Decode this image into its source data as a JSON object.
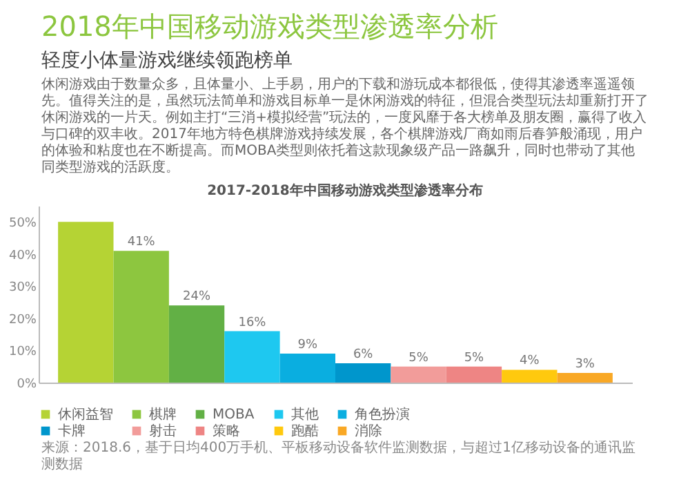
{
  "chart_data": {
    "type": "bar",
    "title": "2018年中国移动游戏类型渗透率分析",
    "subtitle": "轻度小体量游戏继续领跑榜单",
    "annotations": [
      "休闲游戏由于数量众多，且体量小、上手易，用户的下载和游玩成本都很低，使得其渗透率遥遥领先。值得关注的是，虽然玩法简单和游戏目标单一是休闲游戏的特征，但混合类型玩法却重新打开了休闲游戏的一片天。例如主打“三消+模拟经营”玩法的，一度风靡于各大榜单及朋友圈，赢得了收入与口碑的双丰收。2017年地方特色棋牌游戏持续发展，各个棋牌游戏厂商如雨后春笋般涌现，用户的体验和粘度也在不断提高。而MOBA类型则依托着这款现象级产品一路飙升，同时也带动了其他同类型游戏的活跃度。",
      "2017-2018年中国移动游戏类型渗透率分布",
      "来源：2018.6，基于日均400万手机、平板移动设备软件监测数据，与超过1亿移动设备的通讯监测数据"
    ],
    "categories": [
      null,
      null,
      null,
      null,
      null,
      null,
      null,
      null,
      null,
      null
    ],
    "series": [
      {
        "name": "休闲益智",
        "color": "#b5d334",
        "values": [
          50,
          null,
          null,
          null,
          null,
          null,
          null,
          null,
          null,
          null
        ],
        "value_labels": [
          null,
          null,
          null,
          null,
          null,
          null,
          null,
          null,
          null,
          null
        ]
      },
      {
        "name": "棋牌",
        "color": "#8dc63f",
        "values": [
          null,
          41,
          null,
          null,
          null,
          null,
          null,
          null,
          null,
          null
        ],
        "value_labels": [
          null,
          "41%",
          null,
          null,
          null,
          null,
          null,
          null,
          null,
          null
        ]
      },
      {
        "name": "MOBA",
        "color": "#62b045",
        "values": [
          null,
          null,
          24,
          null,
          null,
          null,
          null,
          null,
          null,
          null
        ],
        "value_labels": [
          null,
          null,
          "24%",
          null,
          null,
          null,
          null,
          null,
          null,
          null
        ]
      },
      {
        "name": "其他",
        "color": "#1ec8f0",
        "values": [
          null,
          null,
          null,
          16,
          null,
          null,
          null,
          null,
          null,
          null
        ],
        "value_labels": [
          null,
          null,
          null,
          "16%",
          null,
          null,
          null,
          null,
          null,
          null
        ]
      },
      {
        "name": "角色扮演",
        "color": "#0aaee0",
        "values": [
          null,
          null,
          null,
          null,
          9,
          null,
          null,
          null,
          null,
          null
        ],
        "value_labels": [
          null,
          null,
          null,
          null,
          "9%",
          null,
          null,
          null,
          null,
          null
        ]
      },
      {
        "name": "卡牌",
        "color": "#0096cc",
        "values": [
          null,
          null,
          null,
          null,
          null,
          6,
          null,
          null,
          null,
          null
        ],
        "value_labels": [
          null,
          null,
          null,
          null,
          null,
          "6%",
          null,
          null,
          null,
          null
        ]
      },
      {
        "name": "射击",
        "color": "#f29c9a",
        "values": [
          null,
          null,
          null,
          null,
          null,
          null,
          5,
          null,
          null,
          null
        ],
        "value_labels": [
          null,
          null,
          null,
          null,
          null,
          null,
          "5%",
          null,
          null,
          null
        ]
      },
      {
        "name": "策略",
        "color": "#ee8584",
        "values": [
          null,
          null,
          null,
          null,
          null,
          null,
          null,
          5,
          null,
          null
        ],
        "value_labels": [
          null,
          null,
          null,
          null,
          null,
          null,
          null,
          "5%",
          null,
          null
        ]
      },
      {
        "name": "跑酷",
        "color": "#ffc90e",
        "values": [
          null,
          null,
          null,
          null,
          null,
          null,
          null,
          null,
          4,
          null
        ],
        "value_labels": [
          null,
          null,
          null,
          null,
          null,
          null,
          null,
          null,
          "4%",
          null
        ]
      },
      {
        "name": "消除",
        "color": "#f9a825",
        "values": [
          null,
          null,
          null,
          null,
          null,
          null,
          null,
          null,
          null,
          3
        ],
        "value_labels": [
          null,
          null,
          null,
          null,
          null,
          null,
          null,
          null,
          null,
          "3%"
        ]
      }
    ],
    "ylim": [
      0,
      55
    ],
    "yticks": [
      {
        "value": 0,
        "label": "0%"
      },
      {
        "value": 10,
        "label": "10%"
      },
      {
        "value": 20,
        "label": "20%"
      },
      {
        "value": 30,
        "label": "30%"
      },
      {
        "value": 40,
        "label": "40%"
      },
      {
        "value": 50,
        "label": "50%"
      }
    ],
    "tick_labels": "y",
    "legend": "bottom"
  }
}
